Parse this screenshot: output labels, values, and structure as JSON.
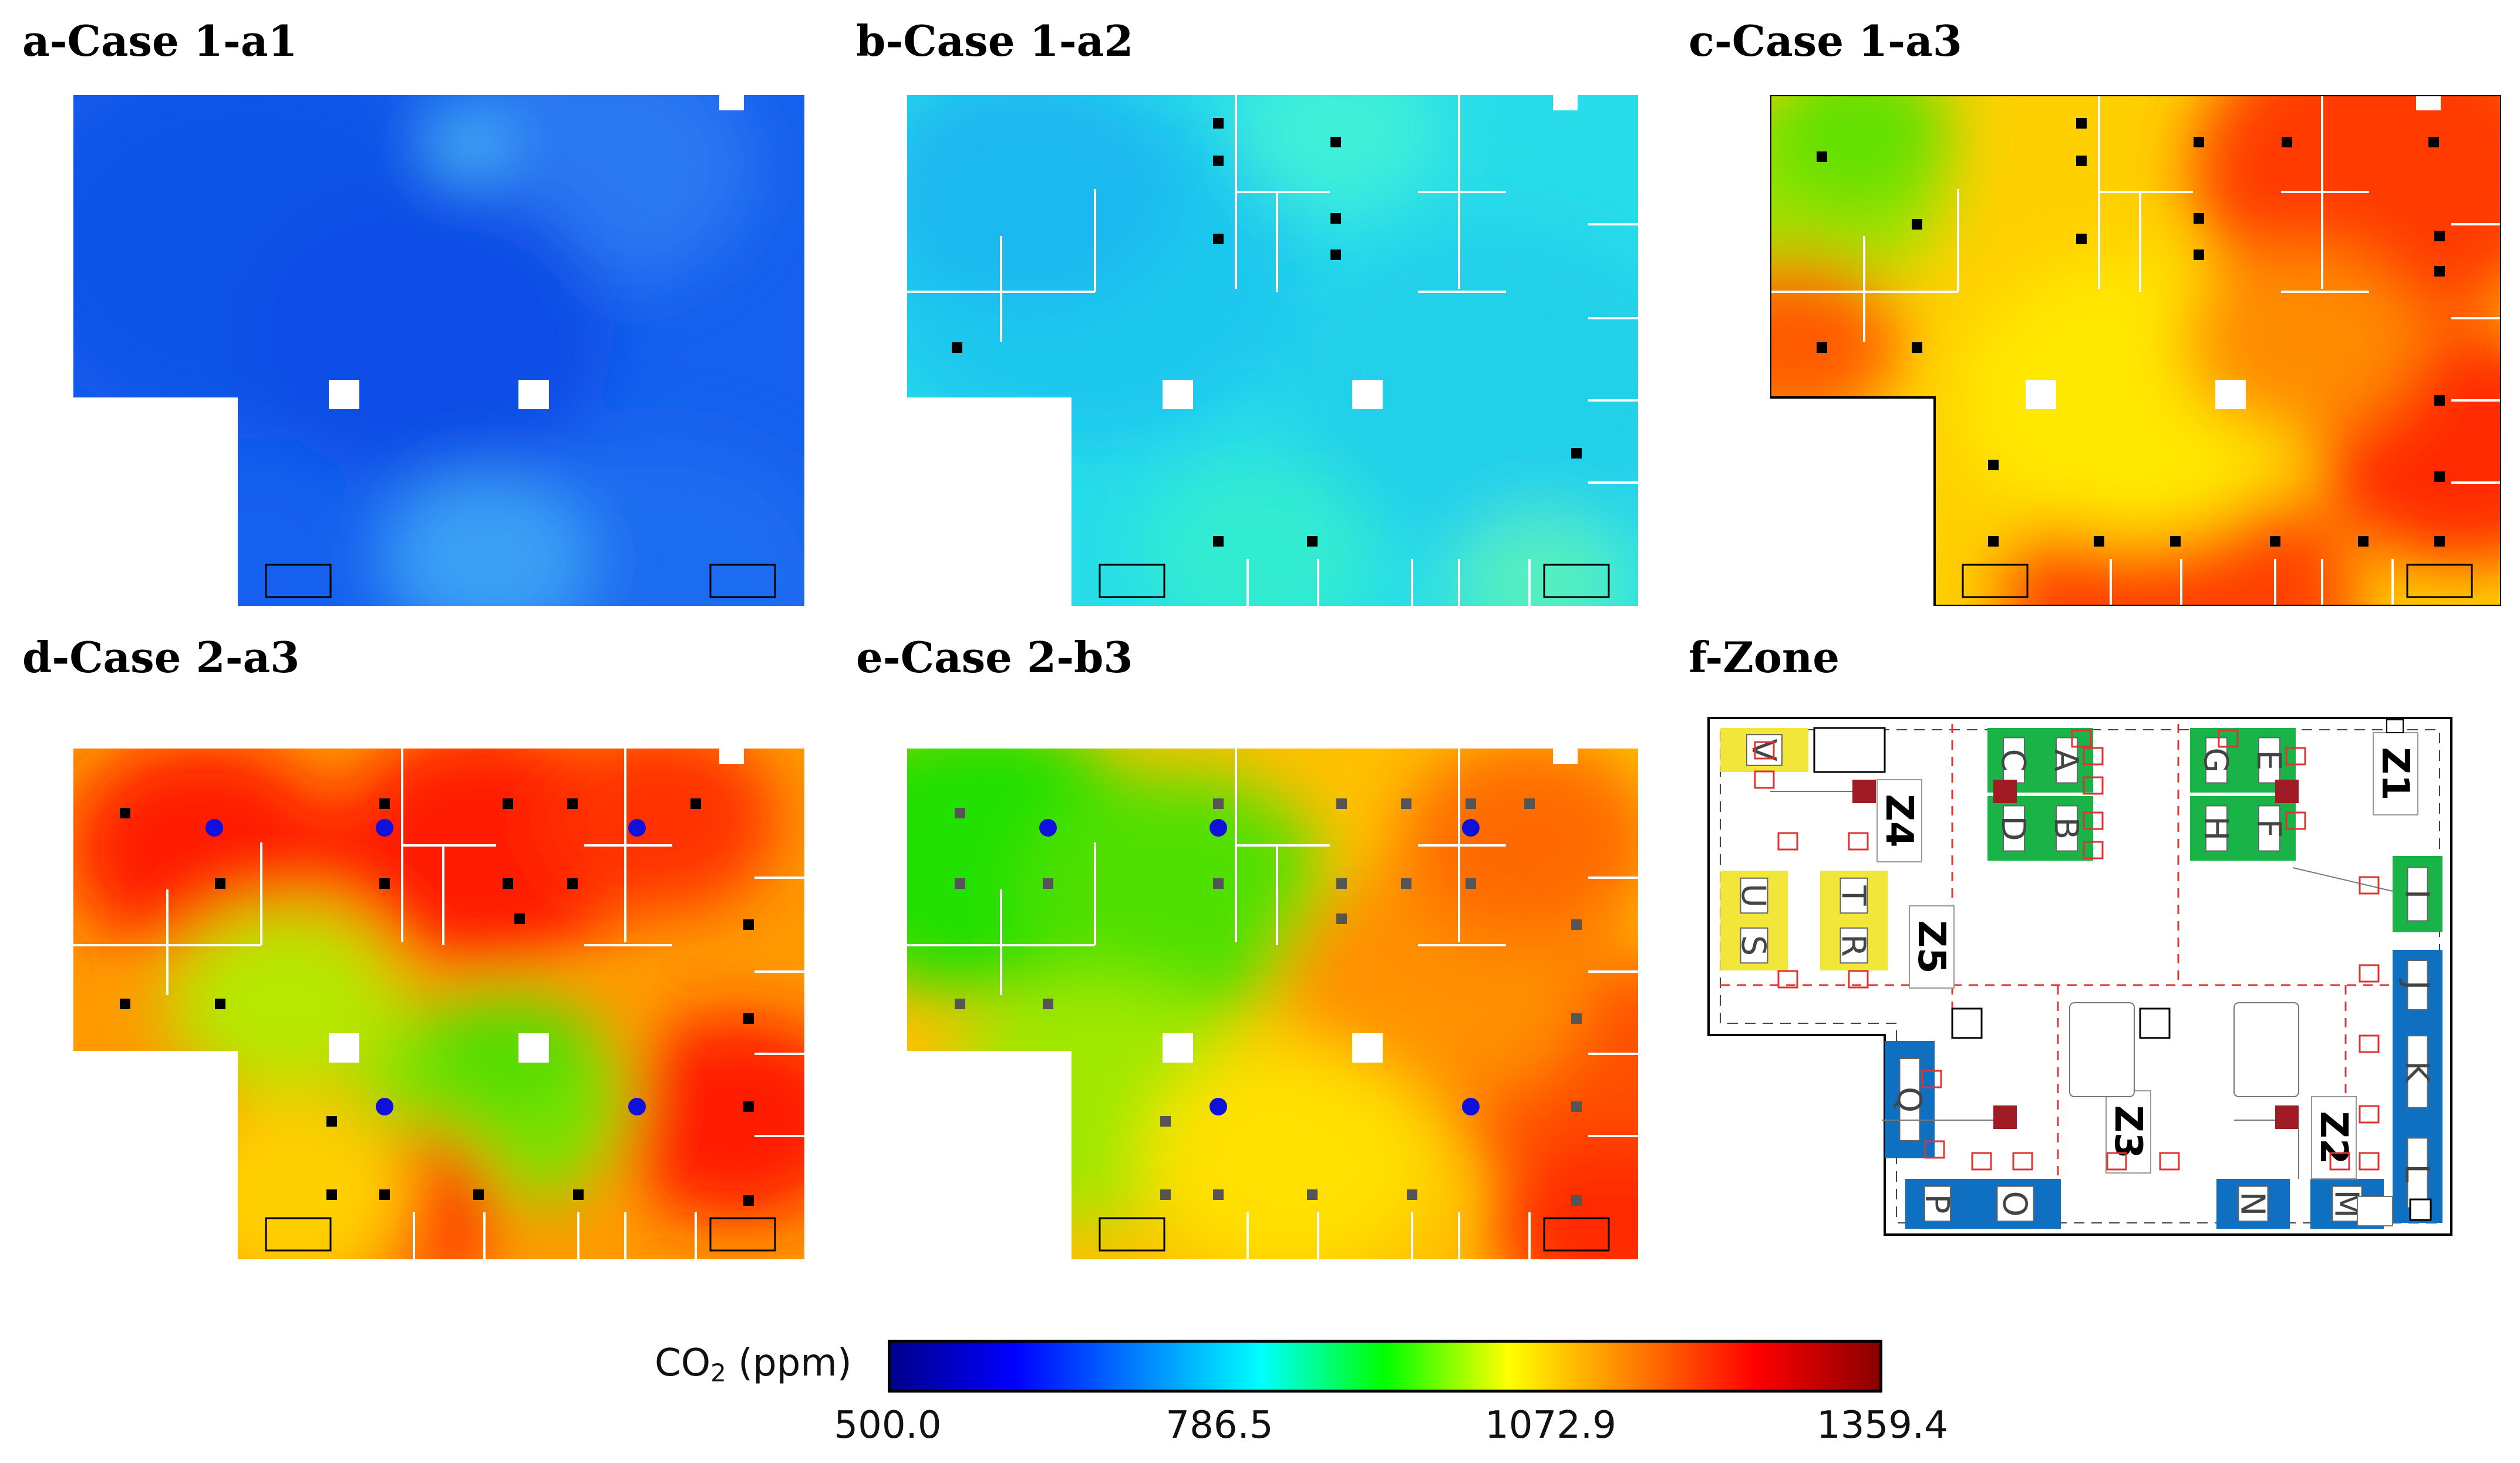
{
  "panels": [
    {
      "id": "a",
      "title": "a-Case 1-a1",
      "field": "low"
    },
    {
      "id": "b",
      "title": "b-Case 1-a2",
      "field": "midlow"
    },
    {
      "id": "c",
      "title": "c-Case 1-a3",
      "field": "high"
    },
    {
      "id": "d",
      "title": "d-Case 2-a3",
      "field": "mixed"
    },
    {
      "id": "e",
      "title": "e-Case 2-b3",
      "field": "gradient"
    },
    {
      "id": "f",
      "title": "f-Zone",
      "field": "zone"
    }
  ],
  "colorbar": {
    "label_prefix": "CO",
    "label_sub": "2",
    "label_suffix": " (ppm)",
    "ticks": [
      "500.0",
      "786.5",
      "1072.9",
      "1359.4"
    ],
    "min": 500.0,
    "max": 1359.4,
    "colors": [
      "#00008b",
      "#0000ff",
      "#0080ff",
      "#00ffff",
      "#00ff00",
      "#ffff00",
      "#ff8000",
      "#ff0000",
      "#8b0000"
    ]
  },
  "zone_map": {
    "zones": [
      "Z1",
      "Z2",
      "Z3",
      "Z4",
      "Z5"
    ],
    "desks_green": [
      "A",
      "B",
      "C",
      "D",
      "E",
      "F",
      "G",
      "H",
      "I"
    ],
    "desks_blue": [
      "J",
      "K",
      "L",
      "M",
      "N",
      "O",
      "P",
      "Q"
    ],
    "desks_yellow": [
      "R",
      "S",
      "T",
      "U",
      "V"
    ]
  }
}
